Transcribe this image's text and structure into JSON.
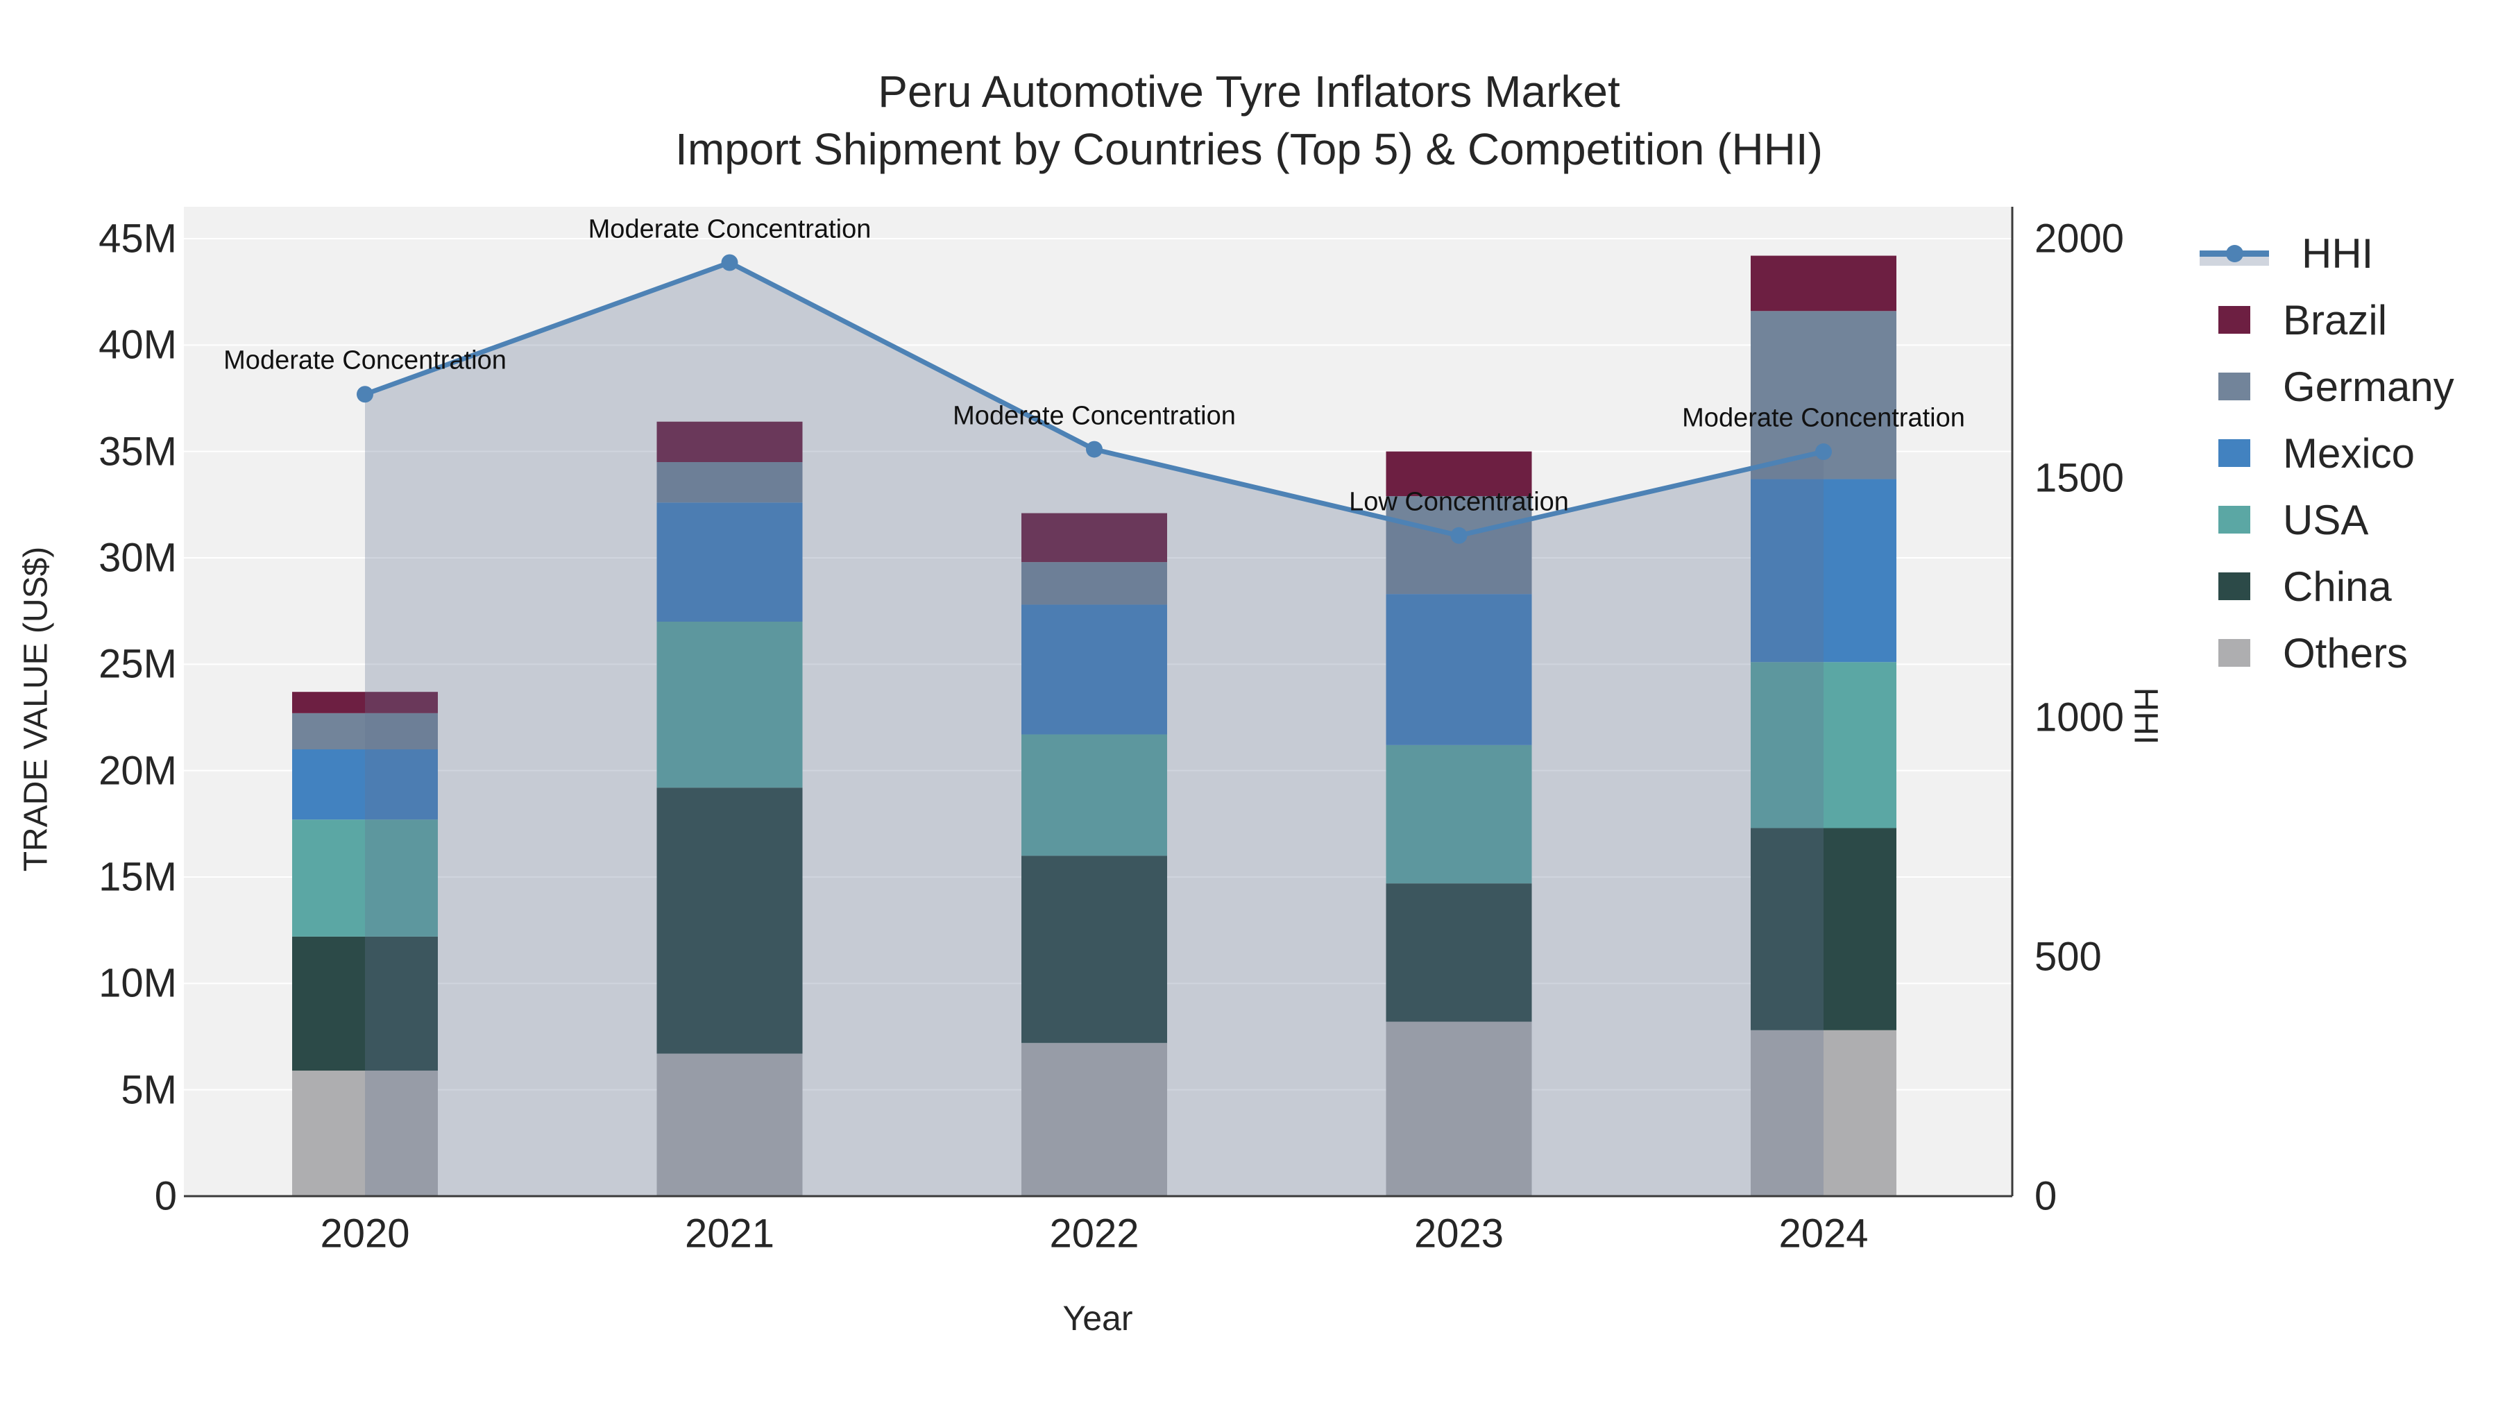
{
  "title": {
    "line1": "Peru Automotive Tyre Inflators Market",
    "line2": "Import Shipment by Countries (Top 5) & Competition (HHI)"
  },
  "axes": {
    "y_left": {
      "title": "TRADE VALUE (US$)",
      "tick_labels": [
        "0",
        "5M",
        "10M",
        "15M",
        "20M",
        "25M",
        "30M",
        "35M",
        "40M",
        "45M"
      ],
      "tick_values_m": [
        0,
        5,
        10,
        15,
        20,
        25,
        30,
        35,
        40,
        45
      ],
      "max_m": 45
    },
    "y_right": {
      "title": "HHI",
      "tick_labels": [
        "0",
        "500",
        "1000",
        "1500",
        "2000"
      ],
      "tick_values": [
        0,
        500,
        1000,
        1500,
        2000
      ],
      "max": 2000
    },
    "x": {
      "title": "Year",
      "labels": [
        "2020",
        "2021",
        "2022",
        "2023",
        "2024"
      ]
    }
  },
  "legend": {
    "entries": [
      {
        "label": "HHI",
        "type": "line",
        "color": "#4d82b5"
      },
      {
        "label": "Brazil",
        "type": "swatch",
        "color": "#6d1f42"
      },
      {
        "label": "Germany",
        "type": "swatch",
        "color": "#72849a"
      },
      {
        "label": "Mexico",
        "type": "swatch",
        "color": "#4282c0"
      },
      {
        "label": "USA",
        "type": "swatch",
        "color": "#5ba7a4"
      },
      {
        "label": "China",
        "type": "swatch",
        "color": "#2c4a48"
      },
      {
        "label": "Others",
        "type": "swatch",
        "color": "#aeaeb0"
      }
    ]
  },
  "chart_data": {
    "type": "bar+line",
    "categories": [
      "2020",
      "2021",
      "2022",
      "2023",
      "2024"
    ],
    "bar_unit": "million US$",
    "stack_order_bottom_to_top": [
      "Others",
      "China",
      "USA",
      "Mexico",
      "Germany",
      "Brazil"
    ],
    "series": [
      {
        "name": "Others",
        "color": "#aeaeb0",
        "values": [
          5.9,
          6.7,
          7.2,
          8.2,
          7.8
        ]
      },
      {
        "name": "China",
        "color": "#2c4a48",
        "values": [
          6.3,
          12.5,
          8.8,
          6.5,
          9.5
        ]
      },
      {
        "name": "USA",
        "color": "#5ba7a4",
        "values": [
          5.5,
          7.8,
          5.7,
          6.5,
          7.8
        ]
      },
      {
        "name": "Mexico",
        "color": "#4282c0",
        "values": [
          3.3,
          5.6,
          6.1,
          7.1,
          8.6
        ]
      },
      {
        "name": "Germany",
        "color": "#72849a",
        "values": [
          1.7,
          1.9,
          2.0,
          4.6,
          7.9
        ]
      },
      {
        "name": "Brazil",
        "color": "#6d1f42",
        "values": [
          1.0,
          1.9,
          2.3,
          2.1,
          2.6
        ]
      }
    ],
    "bar_totals_m": [
      23.7,
      36.4,
      32.1,
      35.0,
      44.2
    ],
    "hhi": {
      "name": "HHI",
      "values": [
        1675,
        1950,
        1560,
        1380,
        1555
      ],
      "line_color": "#4d82b5",
      "fill_color_rgba": "rgba(100,115,145,0.30)"
    },
    "annotations": [
      {
        "x": "2020",
        "text": "Moderate Concentration"
      },
      {
        "x": "2021",
        "text": "Moderate Concentration"
      },
      {
        "x": "2022",
        "text": "Moderate Concentration"
      },
      {
        "x": "2023",
        "text": "Low Concentration"
      },
      {
        "x": "2024",
        "text": "Moderate Concentration"
      }
    ],
    "ylim_left_m": [
      0,
      45
    ],
    "ylim_right": [
      0,
      2000
    ],
    "grid": true,
    "legend_position": "right",
    "plot_bg_color": "#f1f1f1",
    "grid_color": "#ffffff",
    "axis_line_color": "#3a3a3a"
  }
}
